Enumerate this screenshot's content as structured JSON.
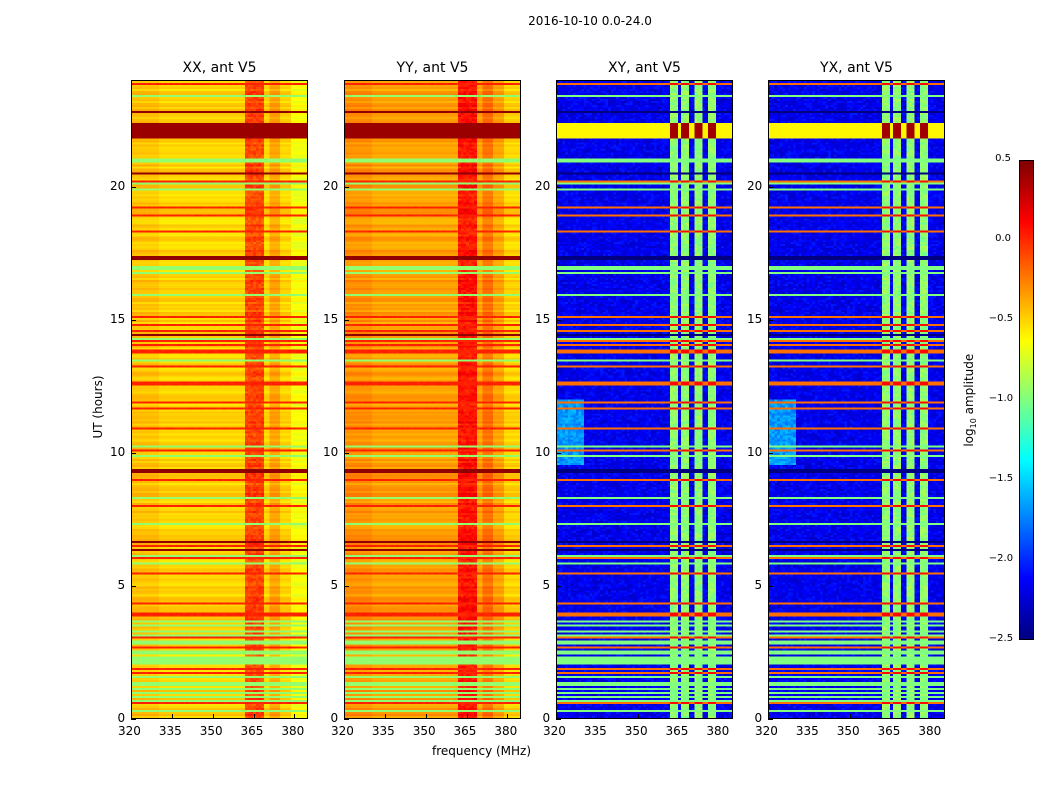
{
  "chart_data": {
    "type": "heatmap",
    "suptitle": "2016-10-10 0.0-24.0",
    "xlabel": "frequency (MHz)",
    "ylabel": "UT (hours)",
    "xlim": [
      320,
      385
    ],
    "ylim": [
      0,
      24
    ],
    "xticks": [
      "320",
      "335",
      "350",
      "365",
      "380"
    ],
    "xtick_values": [
      320,
      335,
      350,
      365,
      380
    ],
    "yticks": [
      "0",
      "5",
      "10",
      "15",
      "20"
    ],
    "ytick_values": [
      0,
      5,
      10,
      15,
      20
    ],
    "panels": [
      {
        "title": "XX, ant V5",
        "kind": "auto",
        "base_log_amp": -0.5
      },
      {
        "title": "YY, ant V5",
        "kind": "auto",
        "base_log_amp": -0.35
      },
      {
        "title": "XY, ant V5",
        "kind": "cross",
        "base_log_amp": -2.3
      },
      {
        "title": "YX, ant V5",
        "kind": "cross",
        "base_log_amp": -2.3
      }
    ],
    "rfi_channels_mhz": [
      [
        362,
        365
      ],
      [
        366,
        369
      ],
      [
        371,
        374
      ],
      [
        376,
        379
      ]
    ],
    "strong_band_hours": [
      21.8,
      22.4
    ],
    "colorbar": {
      "label_prefix": "log",
      "label_sub": "10",
      "label_suffix": " amplitude",
      "colormap": "jet",
      "range": [
        -2.5,
        0.5
      ],
      "ticks": [
        "0.5",
        "0.0",
        "−0.5",
        "−1.0",
        "−1.5",
        "−2.0",
        "−2.5"
      ],
      "tick_values": [
        0.5,
        0.0,
        -0.5,
        -1.0,
        -1.5,
        -2.0,
        -2.5
      ]
    }
  }
}
